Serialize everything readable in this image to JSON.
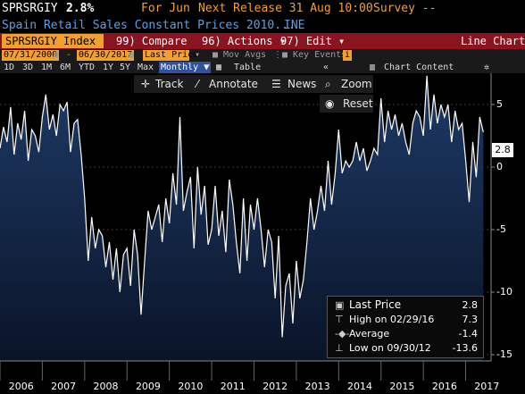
{
  "header": {
    "ticker": "SPRSRGIY",
    "last_value": "2.8%",
    "for_label": "For Jun",
    "next_release": "Next Release 31 Aug 10:00",
    "survey": "Survey --",
    "description": "Spain Retail Sales Constant Prices 2010...",
    "source": "INE"
  },
  "menubar": {
    "ticker_field": "SPRSRGIY Index",
    "compare_num": "99",
    "compare_label": "Compare",
    "actions_num": "96",
    "actions_label": "Actions",
    "edit_num": "97",
    "edit_label": "Edit",
    "chart_type": "Line Chart"
  },
  "settings": {
    "start_date": "07/31/2000",
    "end_date": "06/30/2017",
    "field": "Last Price",
    "mov_avgs": "Mov Avgs",
    "key_events": "Key Events"
  },
  "periods": {
    "items": [
      "1D",
      "3D",
      "1M",
      "6M",
      "YTD",
      "1Y",
      "5Y",
      "Max"
    ],
    "selected": "Monthly",
    "table": "Table",
    "chart_content": "Chart Content"
  },
  "toolbar": {
    "track": "Track",
    "annotate": "Annotate",
    "news": "News",
    "zoom": "Zoom",
    "reset": "Reset"
  },
  "legend": {
    "last_price_label": "Last Price",
    "last_price_value": "2.8",
    "high_label": "High on 02/29/16",
    "high_value": "7.3",
    "average_label": "Average",
    "average_value": "-1.4",
    "low_label": "Low on 09/30/12",
    "low_value": "-13.6"
  },
  "colors": {
    "accent": "#f0a030",
    "menu_bar": "#8a1420",
    "series_line": "#ffffff",
    "area_top": "#1e3a66",
    "area_bottom": "#0a1428"
  },
  "chart_data": {
    "type": "area",
    "title": "Spain Retail Sales Constant Prices 2010...",
    "last_value_label": "2.8",
    "y_ticks": [
      5,
      0,
      -5,
      -10,
      -15
    ],
    "ylim": [
      -15.5,
      7.5
    ],
    "x_ticks": [
      "2006",
      "2007",
      "2008",
      "2009",
      "2010",
      "2011",
      "2012",
      "2013",
      "2014",
      "2015",
      "2016",
      "2017"
    ],
    "xlim": [
      2006.0,
      2017.6
    ],
    "x": [
      2006.0,
      2006.083,
      2006.167,
      2006.25,
      2006.333,
      2006.417,
      2006.5,
      2006.583,
      2006.667,
      2006.75,
      2006.833,
      2006.917,
      2007.0,
      2007.083,
      2007.167,
      2007.25,
      2007.333,
      2007.417,
      2007.5,
      2007.583,
      2007.667,
      2007.75,
      2007.833,
      2007.917,
      2008.0,
      2008.083,
      2008.167,
      2008.25,
      2008.333,
      2008.417,
      2008.5,
      2008.583,
      2008.667,
      2008.75,
      2008.833,
      2008.917,
      2009.0,
      2009.083,
      2009.167,
      2009.25,
      2009.333,
      2009.417,
      2009.5,
      2009.583,
      2009.667,
      2009.75,
      2009.833,
      2009.917,
      2010.0,
      2010.083,
      2010.167,
      2010.25,
      2010.333,
      2010.417,
      2010.5,
      2010.583,
      2010.667,
      2010.75,
      2010.833,
      2010.917,
      2011.0,
      2011.083,
      2011.167,
      2011.25,
      2011.333,
      2011.417,
      2011.5,
      2011.583,
      2011.667,
      2011.75,
      2011.833,
      2011.917,
      2012.0,
      2012.083,
      2012.167,
      2012.25,
      2012.333,
      2012.417,
      2012.5,
      2012.583,
      2012.667,
      2012.75,
      2012.833,
      2012.917,
      2013.0,
      2013.083,
      2013.167,
      2013.25,
      2013.333,
      2013.417,
      2013.5,
      2013.583,
      2013.667,
      2013.75,
      2013.833,
      2013.917,
      2014.0,
      2014.083,
      2014.167,
      2014.25,
      2014.333,
      2014.417,
      2014.5,
      2014.583,
      2014.667,
      2014.75,
      2014.833,
      2014.917,
      2015.0,
      2015.083,
      2015.167,
      2015.25,
      2015.333,
      2015.417,
      2015.5,
      2015.583,
      2015.667,
      2015.75,
      2015.833,
      2015.917,
      2016.0,
      2016.083,
      2016.167,
      2016.25,
      2016.333,
      2016.417,
      2016.5,
      2016.583,
      2016.667,
      2016.75,
      2016.833,
      2016.917,
      2017.0,
      2017.083,
      2017.167,
      2017.25,
      2017.333,
      2017.417
    ],
    "values": [
      1.5,
      3.2,
      2.0,
      4.8,
      1.0,
      3.5,
      2.2,
      4.5,
      0.5,
      3.0,
      2.5,
      1.2,
      4.0,
      5.8,
      3.0,
      4.2,
      2.5,
      5.0,
      4.5,
      5.2,
      1.2,
      3.5,
      3.8,
      1.0,
      -2.5,
      -7.5,
      -4.0,
      -6.5,
      -5.0,
      -5.5,
      -8.0,
      -6.0,
      -9.0,
      -6.5,
      -10.0,
      -7.0,
      -6.5,
      -9.5,
      -5.0,
      -7.0,
      -11.8,
      -7.5,
      -3.5,
      -5.0,
      -4.0,
      -3.0,
      -6.0,
      -2.5,
      -4.5,
      -0.5,
      -3.0,
      4.0,
      -3.5,
      -2.0,
      -0.8,
      -6.5,
      0.0,
      -3.8,
      -1.5,
      -6.2,
      -5.0,
      -1.5,
      -5.5,
      -3.5,
      -6.8,
      -1.0,
      -3.0,
      -6.0,
      -8.5,
      -2.5,
      -7.5,
      -3.0,
      -5.0,
      -2.5,
      -5.0,
      -8.0,
      -5.0,
      -6.0,
      -10.5,
      -5.5,
      -13.6,
      -9.5,
      -8.5,
      -12.5,
      -7.5,
      -10.5,
      -9.0,
      -6.0,
      -2.5,
      -5.0,
      -3.5,
      -1.5,
      -3.5,
      0.5,
      -3.0,
      -0.5,
      3.0,
      -0.5,
      0.5,
      0.0,
      0.5,
      2.0,
      0.5,
      1.5,
      -0.3,
      0.5,
      1.5,
      1.0,
      5.5,
      2.0,
      4.5,
      3.0,
      4.2,
      2.5,
      3.5,
      2.0,
      1.0,
      3.5,
      4.5,
      4.0,
      2.5,
      7.3,
      3.0,
      5.8,
      3.5,
      5.0,
      4.0,
      5.0,
      2.0,
      4.5,
      3.0,
      3.5,
      0.5,
      -2.8,
      2.0,
      -0.8,
      4.0,
      2.8
    ]
  }
}
